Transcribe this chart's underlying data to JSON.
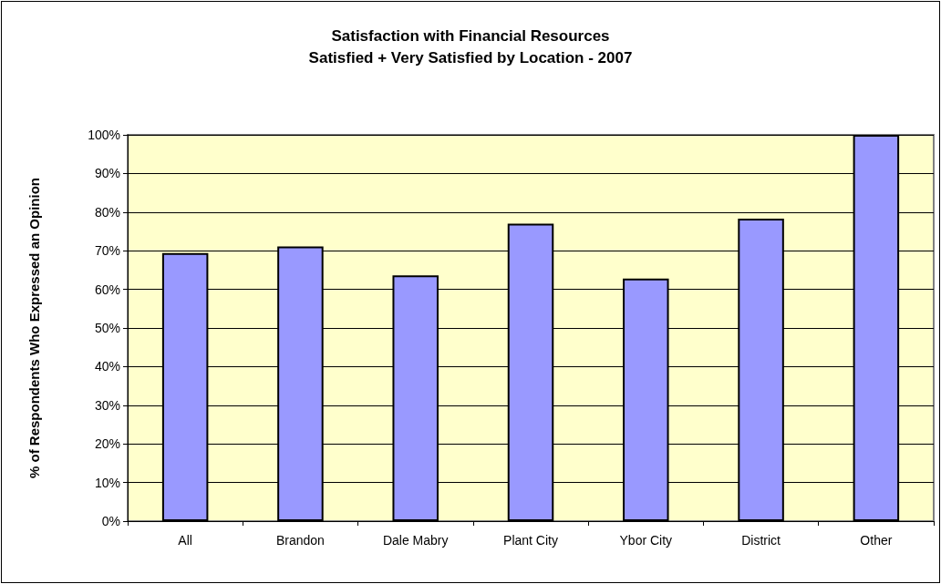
{
  "chart_data": {
    "type": "bar",
    "title": "Satisfaction with Financial Resources\nSatisfied + Very Satisfied by Location - 2007",
    "ylabel": "% of Respondents Who Expressed an Opinion",
    "categories": [
      "All",
      "Brandon",
      "Dale Mabry",
      "Plant City",
      "Ybor City",
      "District",
      "Other"
    ],
    "values": [
      69.4,
      71.1,
      63.6,
      77.0,
      62.8,
      78.3,
      100
    ],
    "color": "#9999ff",
    "ylim": [
      0,
      100
    ],
    "yticks": [
      {
        "value": 0,
        "label": "0%"
      },
      {
        "value": 10,
        "label": "10%"
      },
      {
        "value": 20,
        "label": "20%"
      },
      {
        "value": 30,
        "label": "30%"
      },
      {
        "value": 40,
        "label": "40%"
      },
      {
        "value": 50,
        "label": "50%"
      },
      {
        "value": 60,
        "label": "60%"
      },
      {
        "value": 70,
        "label": "70%"
      },
      {
        "value": 80,
        "label": "80%"
      },
      {
        "value": 90,
        "label": "90%"
      },
      {
        "value": 100,
        "label": "100%"
      }
    ],
    "grid": true
  }
}
